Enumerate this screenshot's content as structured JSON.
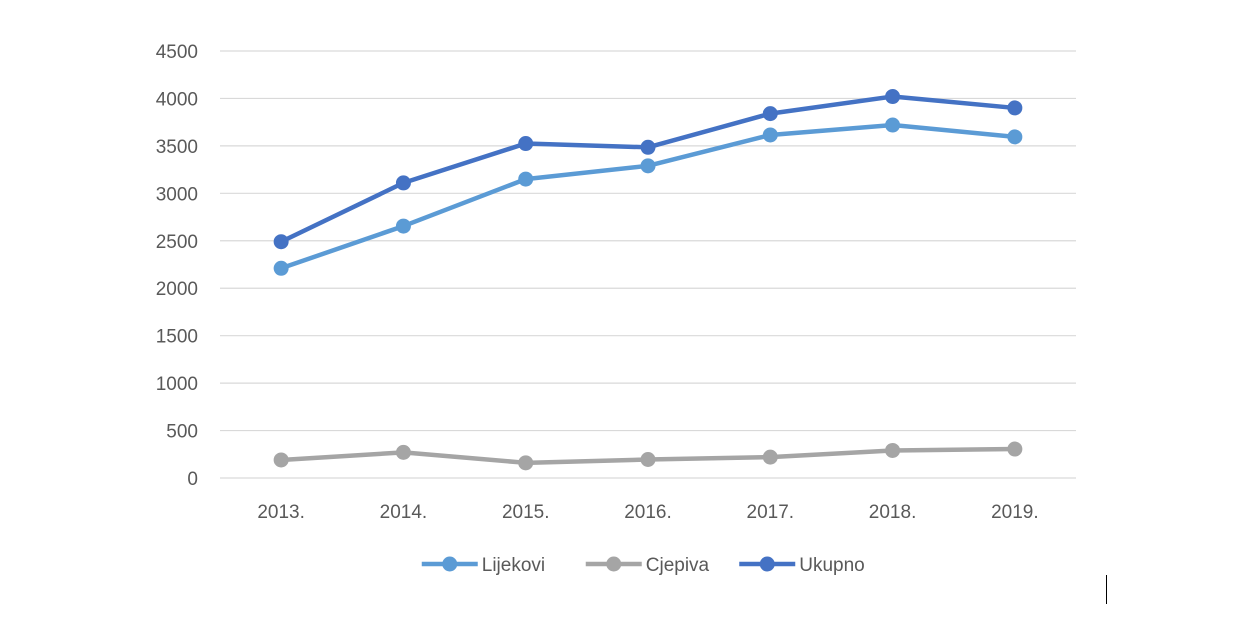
{
  "chart_data": {
    "type": "line",
    "title": "",
    "xlabel": "",
    "ylabel": "",
    "categories": [
      "2013.",
      "2014.",
      "2015.",
      "2016.",
      "2017.",
      "2018.",
      "2019."
    ],
    "ylim": [
      0,
      4500
    ],
    "yticks": [
      "0",
      "500",
      "1000",
      "1500",
      "2000",
      "2500",
      "3000",
      "3500",
      "4000",
      "4500"
    ],
    "grid": true,
    "legend_position": "bottom",
    "series": [
      {
        "name": "Lijekovi",
        "color": "#5B9BD5",
        "values": [
          2210,
          2655,
          3150,
          3290,
          3615,
          3720,
          3595
        ]
      },
      {
        "name": "Cjepiva",
        "color": "#A5A5A5",
        "values": [
          190,
          270,
          160,
          195,
          220,
          290,
          305
        ]
      },
      {
        "name": "Ukupno",
        "color": "#4472C4",
        "values": [
          2490,
          3110,
          3525,
          3485,
          3840,
          4020,
          3900
        ]
      }
    ]
  }
}
